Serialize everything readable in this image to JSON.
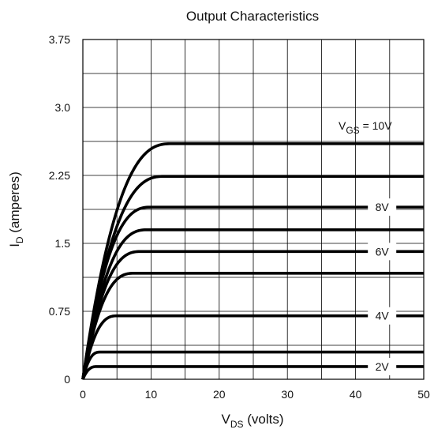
{
  "chart_data": {
    "type": "line",
    "title": "Output Characteristics",
    "xlabel": {
      "main": "V",
      "sub": "DS",
      "rest": " (volts)"
    },
    "ylabel": {
      "main": "I",
      "sub": "D",
      "rest": " (amperes)"
    },
    "xlim": [
      0,
      50
    ],
    "ylim": [
      0,
      3.75
    ],
    "xticks": [
      0,
      10,
      20,
      30,
      40,
      50
    ],
    "xtick_labels": [
      "0",
      "10",
      "20",
      "30",
      "40",
      "50"
    ],
    "yticks": [
      0,
      0.75,
      1.5,
      2.25,
      3.0,
      3.75
    ],
    "ytick_labels": [
      "0",
      "0.75",
      "1.5",
      "2.25",
      "3.0",
      "3.75"
    ],
    "grid": {
      "x_step": 5,
      "y_step": 0.375
    },
    "series": [
      {
        "saturation": 2.6,
        "knee": 13
      },
      {
        "saturation": 2.24,
        "knee": 12
      },
      {
        "saturation": 1.9,
        "knee": 10
      },
      {
        "saturation": 1.65,
        "knee": 9.5
      },
      {
        "saturation": 1.41,
        "knee": 8.5
      },
      {
        "saturation": 1.17,
        "knee": 7.5
      },
      {
        "saturation": 0.7,
        "knee": 5
      },
      {
        "saturation": 0.3,
        "knee": 2.5
      },
      {
        "saturation": 0.14,
        "knee": 2
      }
    ],
    "annotations": [
      {
        "main": "V",
        "sub": "GS",
        "rest": " = 10V",
        "x": 37.5,
        "y": 2.8
      },
      {
        "text": "8V",
        "x": 42.5,
        "y": 1.9
      },
      {
        "text": "6V",
        "x": 42.5,
        "y": 1.41
      },
      {
        "text": "4V",
        "x": 42.5,
        "y": 0.7
      },
      {
        "text": "2V",
        "x": 42.5,
        "y": 0.14
      }
    ]
  }
}
